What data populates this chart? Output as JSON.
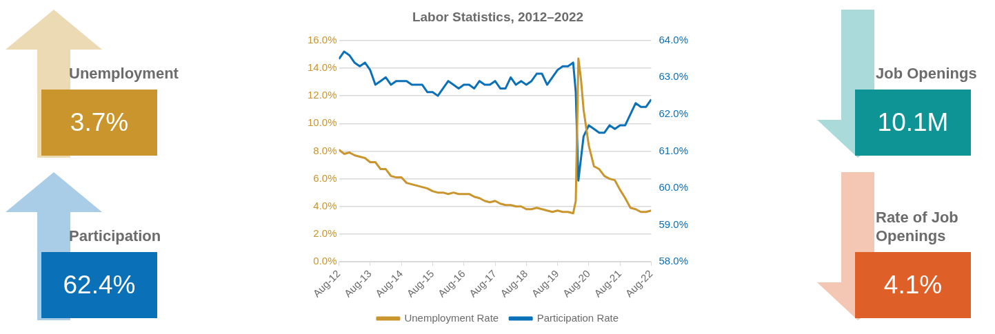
{
  "chart_data": [
    {
      "type": "other",
      "title": "Unemployment",
      "annotations": [
        "3.7%"
      ],
      "color": "#c9952c"
    },
    {
      "type": "line",
      "title": "Labor Statistics, 2012–2022",
      "x": [
        "2012-08",
        "2012-10",
        "2012-12",
        "2013-02",
        "2013-04",
        "2013-06",
        "2013-08",
        "2013-10",
        "2013-12",
        "2014-02",
        "2014-04",
        "2014-06",
        "2014-08",
        "2014-10",
        "2014-12",
        "2015-02",
        "2015-04",
        "2015-06",
        "2015-08",
        "2015-10",
        "2015-12",
        "2016-02",
        "2016-04",
        "2016-06",
        "2016-08",
        "2016-10",
        "2016-12",
        "2017-02",
        "2017-04",
        "2017-06",
        "2017-08",
        "2017-10",
        "2017-12",
        "2018-02",
        "2018-04",
        "2018-06",
        "2018-08",
        "2018-10",
        "2018-12",
        "2019-02",
        "2019-04",
        "2019-06",
        "2019-08",
        "2019-10",
        "2019-12",
        "2020-02",
        "2020-03",
        "2020-04",
        "2020-05",
        "2020-06",
        "2020-08",
        "2020-10",
        "2020-12",
        "2021-02",
        "2021-04",
        "2021-06",
        "2021-08",
        "2021-10",
        "2021-12",
        "2022-02",
        "2022-04",
        "2022-06",
        "2022-08"
      ],
      "series": [
        {
          "name": "Unemployment Rate",
          "color": "#c9952c",
          "values": [
            8.1,
            7.8,
            7.9,
            7.7,
            7.6,
            7.5,
            7.2,
            7.2,
            6.7,
            6.7,
            6.2,
            6.1,
            6.1,
            5.7,
            5.6,
            5.5,
            5.4,
            5.3,
            5.1,
            5.0,
            5.0,
            4.9,
            5.0,
            4.9,
            4.9,
            4.9,
            4.7,
            4.6,
            4.4,
            4.3,
            4.4,
            4.2,
            4.1,
            4.1,
            4.0,
            4.0,
            3.8,
            3.8,
            3.9,
            3.8,
            3.7,
            3.6,
            3.7,
            3.6,
            3.6,
            3.5,
            4.4,
            14.7,
            13.2,
            11.0,
            8.4,
            6.9,
            6.7,
            6.2,
            6.0,
            5.9,
            5.2,
            4.6,
            3.9,
            3.8,
            3.6,
            3.6,
            3.7
          ]
        },
        {
          "name": "Participation Rate",
          "color": "#0a70b8",
          "axis": "y2",
          "values": [
            63.5,
            63.7,
            63.6,
            63.4,
            63.3,
            63.4,
            63.2,
            62.8,
            62.9,
            63.0,
            62.8,
            62.9,
            62.9,
            62.9,
            62.8,
            62.8,
            62.8,
            62.6,
            62.6,
            62.5,
            62.7,
            62.9,
            62.8,
            62.7,
            62.8,
            62.8,
            62.7,
            62.9,
            62.8,
            62.8,
            62.9,
            62.7,
            62.7,
            63.0,
            62.8,
            62.9,
            62.8,
            62.9,
            63.1,
            63.1,
            62.8,
            63.0,
            63.2,
            63.3,
            63.3,
            63.4,
            62.6,
            60.2,
            60.8,
            61.4,
            61.7,
            61.6,
            61.5,
            61.5,
            61.7,
            61.6,
            61.7,
            61.7,
            62.0,
            62.3,
            62.2,
            62.2,
            62.4
          ]
        }
      ],
      "xlim": [
        "2012-08",
        "2022-08"
      ],
      "xticks": [
        {
          "value": "2012-08",
          "label": "Aug-12"
        },
        {
          "value": "2013-08",
          "label": "Aug-13"
        },
        {
          "value": "2014-08",
          "label": "Aug-14"
        },
        {
          "value": "2015-08",
          "label": "Aug-15"
        },
        {
          "value": "2016-08",
          "label": "Aug-16"
        },
        {
          "value": "2017-08",
          "label": "Aug-17"
        },
        {
          "value": "2018-08",
          "label": "Aug-18"
        },
        {
          "value": "2019-08",
          "label": "Aug-19"
        },
        {
          "value": "2020-08",
          "label": "Aug-20"
        },
        {
          "value": "2021-08",
          "label": "Aug-21"
        },
        {
          "value": "2022-08",
          "label": "Aug-22"
        }
      ],
      "ylim": [
        0,
        16
      ],
      "yticks": [
        {
          "value": 0,
          "label": "0.0%"
        },
        {
          "value": 2,
          "label": "2.0%"
        },
        {
          "value": 4,
          "label": "4.0%"
        },
        {
          "value": 6,
          "label": "6.0%"
        },
        {
          "value": 8,
          "label": "8.0%"
        },
        {
          "value": 10,
          "label": "10.0%"
        },
        {
          "value": 12,
          "label": "12.0%"
        },
        {
          "value": 14,
          "label": "14.0%"
        },
        {
          "value": 16,
          "label": "16.0%"
        }
      ],
      "y2lim": [
        58,
        64
      ],
      "y2ticks": [
        {
          "value": 58,
          "label": "58.0%"
        },
        {
          "value": 59,
          "label": "59.0%"
        },
        {
          "value": 60,
          "label": "60.0%"
        },
        {
          "value": 61,
          "label": "61.0%"
        },
        {
          "value": 62,
          "label": "62.0%"
        },
        {
          "value": 63,
          "label": "63.0%"
        },
        {
          "value": 64,
          "label": "64.0%"
        }
      ],
      "grid": "y",
      "legend": "bottom",
      "marker": "none",
      "line_style": "solid"
    },
    {
      "type": "other",
      "title": "Job Openings",
      "annotations": [
        "10.1M"
      ],
      "color": "#0e9494"
    },
    {
      "type": "other",
      "title": "Participation",
      "annotations": [
        "62.4%"
      ],
      "color": "#0a70b8"
    },
    {
      "type": "other",
      "title": "Rate of Job Openings",
      "annotations": [
        "4.1%"
      ],
      "color": "#df5f28"
    }
  ]
}
